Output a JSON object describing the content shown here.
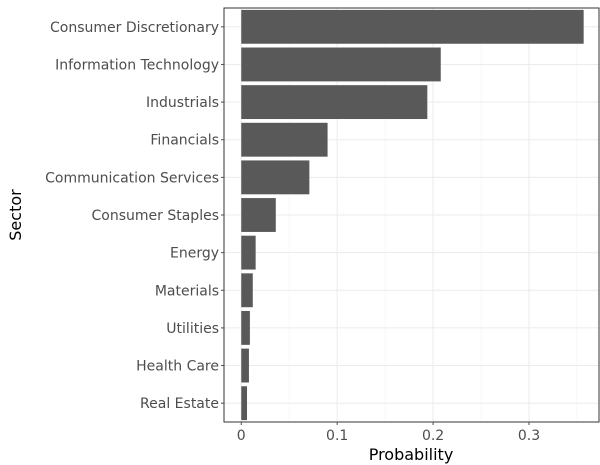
{
  "chart_data": {
    "type": "bar",
    "orientation": "horizontal",
    "categories": [
      "Consumer Discretionary",
      "Information Technology",
      "Industrials",
      "Financials",
      "Communication Services",
      "Consumer Staples",
      "Energy",
      "Materials",
      "Utilities",
      "Health Care",
      "Real Estate"
    ],
    "values": [
      0.357,
      0.208,
      0.194,
      0.09,
      0.071,
      0.036,
      0.015,
      0.012,
      0.009,
      0.008,
      0.006
    ],
    "xlabel": "Probability",
    "ylabel": "Sector",
    "xlim": [
      -0.018,
      0.373
    ],
    "xticks": [
      0,
      0.1,
      0.2,
      0.3
    ],
    "xtick_labels": [
      "0",
      "0.1",
      "0.2",
      "0.3"
    ],
    "grid": true,
    "bar_color": "#595959",
    "panel_border_color": "#333333"
  }
}
